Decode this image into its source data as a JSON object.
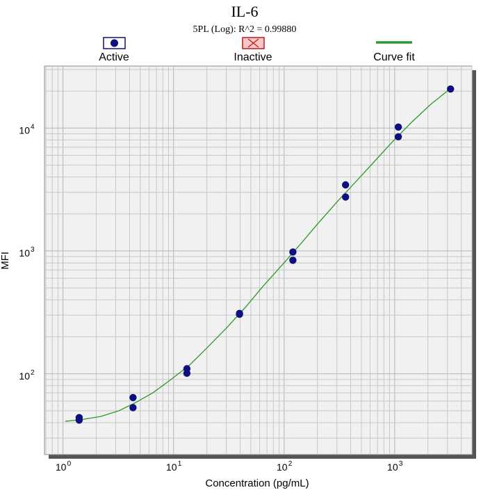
{
  "chart_data": {
    "type": "scatter",
    "title": "IL-6",
    "subtitle": "5PL (Log): R^2 = 0.99880",
    "xlabel": "Concentration (pg/mL)",
    "ylabel": "MFI",
    "x_scale": "log",
    "y_scale": "log",
    "xlim": [
      0.68,
      5000
    ],
    "ylim": [
      22,
      32000
    ],
    "x_ticks": [
      {
        "value": 1,
        "base": "10",
        "exp": "0"
      },
      {
        "value": 10,
        "base": "10",
        "exp": "1"
      },
      {
        "value": 100,
        "base": "10",
        "exp": "2"
      },
      {
        "value": 1000,
        "base": "10",
        "exp": "3"
      }
    ],
    "y_ticks": [
      {
        "value": 100,
        "base": "10",
        "exp": "2"
      },
      {
        "value": 1000,
        "base": "10",
        "exp": "3"
      },
      {
        "value": 10000,
        "base": "10",
        "exp": "4"
      }
    ],
    "grid": true,
    "legend_position": "top",
    "legend": [
      {
        "label": "Active",
        "marker": "filled-circle"
      },
      {
        "label": "Inactive",
        "marker": "x-box"
      },
      {
        "label": "Curve fit",
        "marker": "line"
      }
    ],
    "series": [
      {
        "name": "Active",
        "color": "#0f0f80",
        "points": [
          {
            "x": 1.4,
            "y": 44
          },
          {
            "x": 1.4,
            "y": 42
          },
          {
            "x": 4.3,
            "y": 64
          },
          {
            "x": 4.3,
            "y": 53
          },
          {
            "x": 13.2,
            "y": 110
          },
          {
            "x": 13.2,
            "y": 101
          },
          {
            "x": 39.5,
            "y": 310
          },
          {
            "x": 39.5,
            "y": 305
          },
          {
            "x": 120,
            "y": 980
          },
          {
            "x": 120,
            "y": 840
          },
          {
            "x": 360,
            "y": 3450
          },
          {
            "x": 360,
            "y": 2750
          },
          {
            "x": 1080,
            "y": 10200
          },
          {
            "x": 1080,
            "y": 8500
          },
          {
            "x": 3200,
            "y": 20800
          }
        ]
      },
      {
        "name": "Curve fit",
        "color": "#2a9a2a",
        "points": [
          {
            "x": 1.05,
            "y": 41
          },
          {
            "x": 1.5,
            "y": 42.5
          },
          {
            "x": 2.2,
            "y": 45
          },
          {
            "x": 3.2,
            "y": 50
          },
          {
            "x": 4.5,
            "y": 58
          },
          {
            "x": 6.5,
            "y": 70
          },
          {
            "x": 9.5,
            "y": 90
          },
          {
            "x": 14,
            "y": 118
          },
          {
            "x": 20,
            "y": 162
          },
          {
            "x": 30,
            "y": 235
          },
          {
            "x": 45,
            "y": 350
          },
          {
            "x": 65,
            "y": 520
          },
          {
            "x": 95,
            "y": 760
          },
          {
            "x": 140,
            "y": 1130
          },
          {
            "x": 200,
            "y": 1650
          },
          {
            "x": 300,
            "y": 2500
          },
          {
            "x": 450,
            "y": 3700
          },
          {
            "x": 650,
            "y": 5300
          },
          {
            "x": 950,
            "y": 7700
          },
          {
            "x": 1400,
            "y": 11000
          },
          {
            "x": 2100,
            "y": 15500
          },
          {
            "x": 3200,
            "y": 21000
          }
        ]
      }
    ],
    "colors": {
      "plot_background": "#f1f1f1",
      "frame_shadow": "#555555",
      "inactive_marker": "#c01a1a"
    }
  }
}
